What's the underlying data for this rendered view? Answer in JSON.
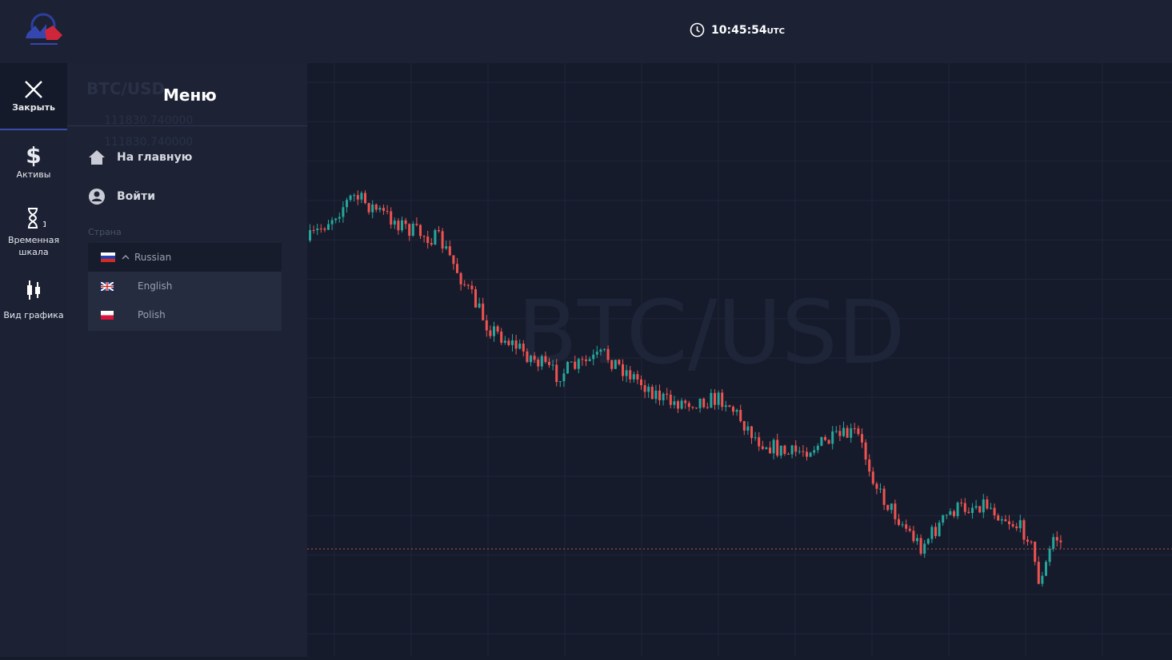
{
  "header": {
    "time": "10:45:54",
    "timezone": "UTC"
  },
  "sidebar": {
    "close": "Закрыть",
    "items": [
      {
        "label": "Активы"
      },
      {
        "label": "Временная шкала",
        "badge": "1"
      },
      {
        "label": "Вид графика"
      }
    ]
  },
  "menu": {
    "title": "Меню",
    "links": [
      "На главную",
      "Войти"
    ],
    "country_label": "Страна",
    "languages": [
      "Russian",
      "English",
      "Polish"
    ]
  },
  "background": {
    "pair": "BTC/USD",
    "ask": "111830.740000",
    "bid": "111830.740000"
  },
  "chart": {
    "watermark": "BTC/USD"
  }
}
